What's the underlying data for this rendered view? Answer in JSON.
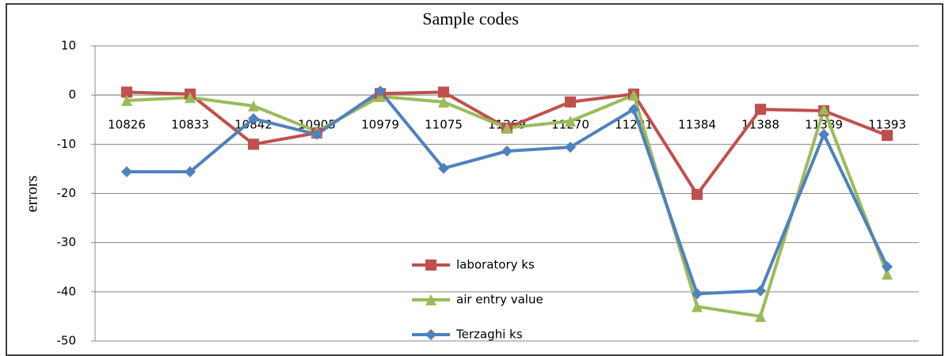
{
  "chart_data": {
    "type": "line",
    "title": "Sample codes",
    "y_label": "errors",
    "categories": [
      "10826",
      "10833",
      "10842",
      "10905",
      "10979",
      "11075",
      "11269",
      "11270",
      "11281",
      "11384",
      "11388",
      "11389",
      "11393"
    ],
    "series": [
      {
        "name": "laboratory ks",
        "color": "#c0504d",
        "marker": "square",
        "values": [
          0.6,
          0.2,
          -10,
          -7.7,
          0.3,
          0.6,
          -6.7,
          -1.4,
          0.2,
          -20.2,
          -2.9,
          -3.2,
          -8.2
        ]
      },
      {
        "name": "air entry value",
        "color": "#9bbb59",
        "marker": "triangle",
        "values": [
          -1.1,
          -0.5,
          -2.2,
          -7.4,
          -0.3,
          -1.4,
          -6.7,
          -5.3,
          0,
          -43,
          -45,
          -2.9,
          -36.4
        ]
      },
      {
        "name": "Terzaghi ks",
        "color": "#4f81bd",
        "marker": "diamond",
        "values": [
          -15.6,
          -15.6,
          -4.8,
          -8,
          0.8,
          -14.9,
          -11.4,
          -10.6,
          -2.9,
          -40.4,
          -39.8,
          -8,
          -34.9
        ]
      }
    ],
    "ylim": [
      -50,
      10
    ],
    "yticks": [
      10,
      0,
      -10,
      -20,
      -30,
      -40,
      -50
    ],
    "grid": true
  }
}
